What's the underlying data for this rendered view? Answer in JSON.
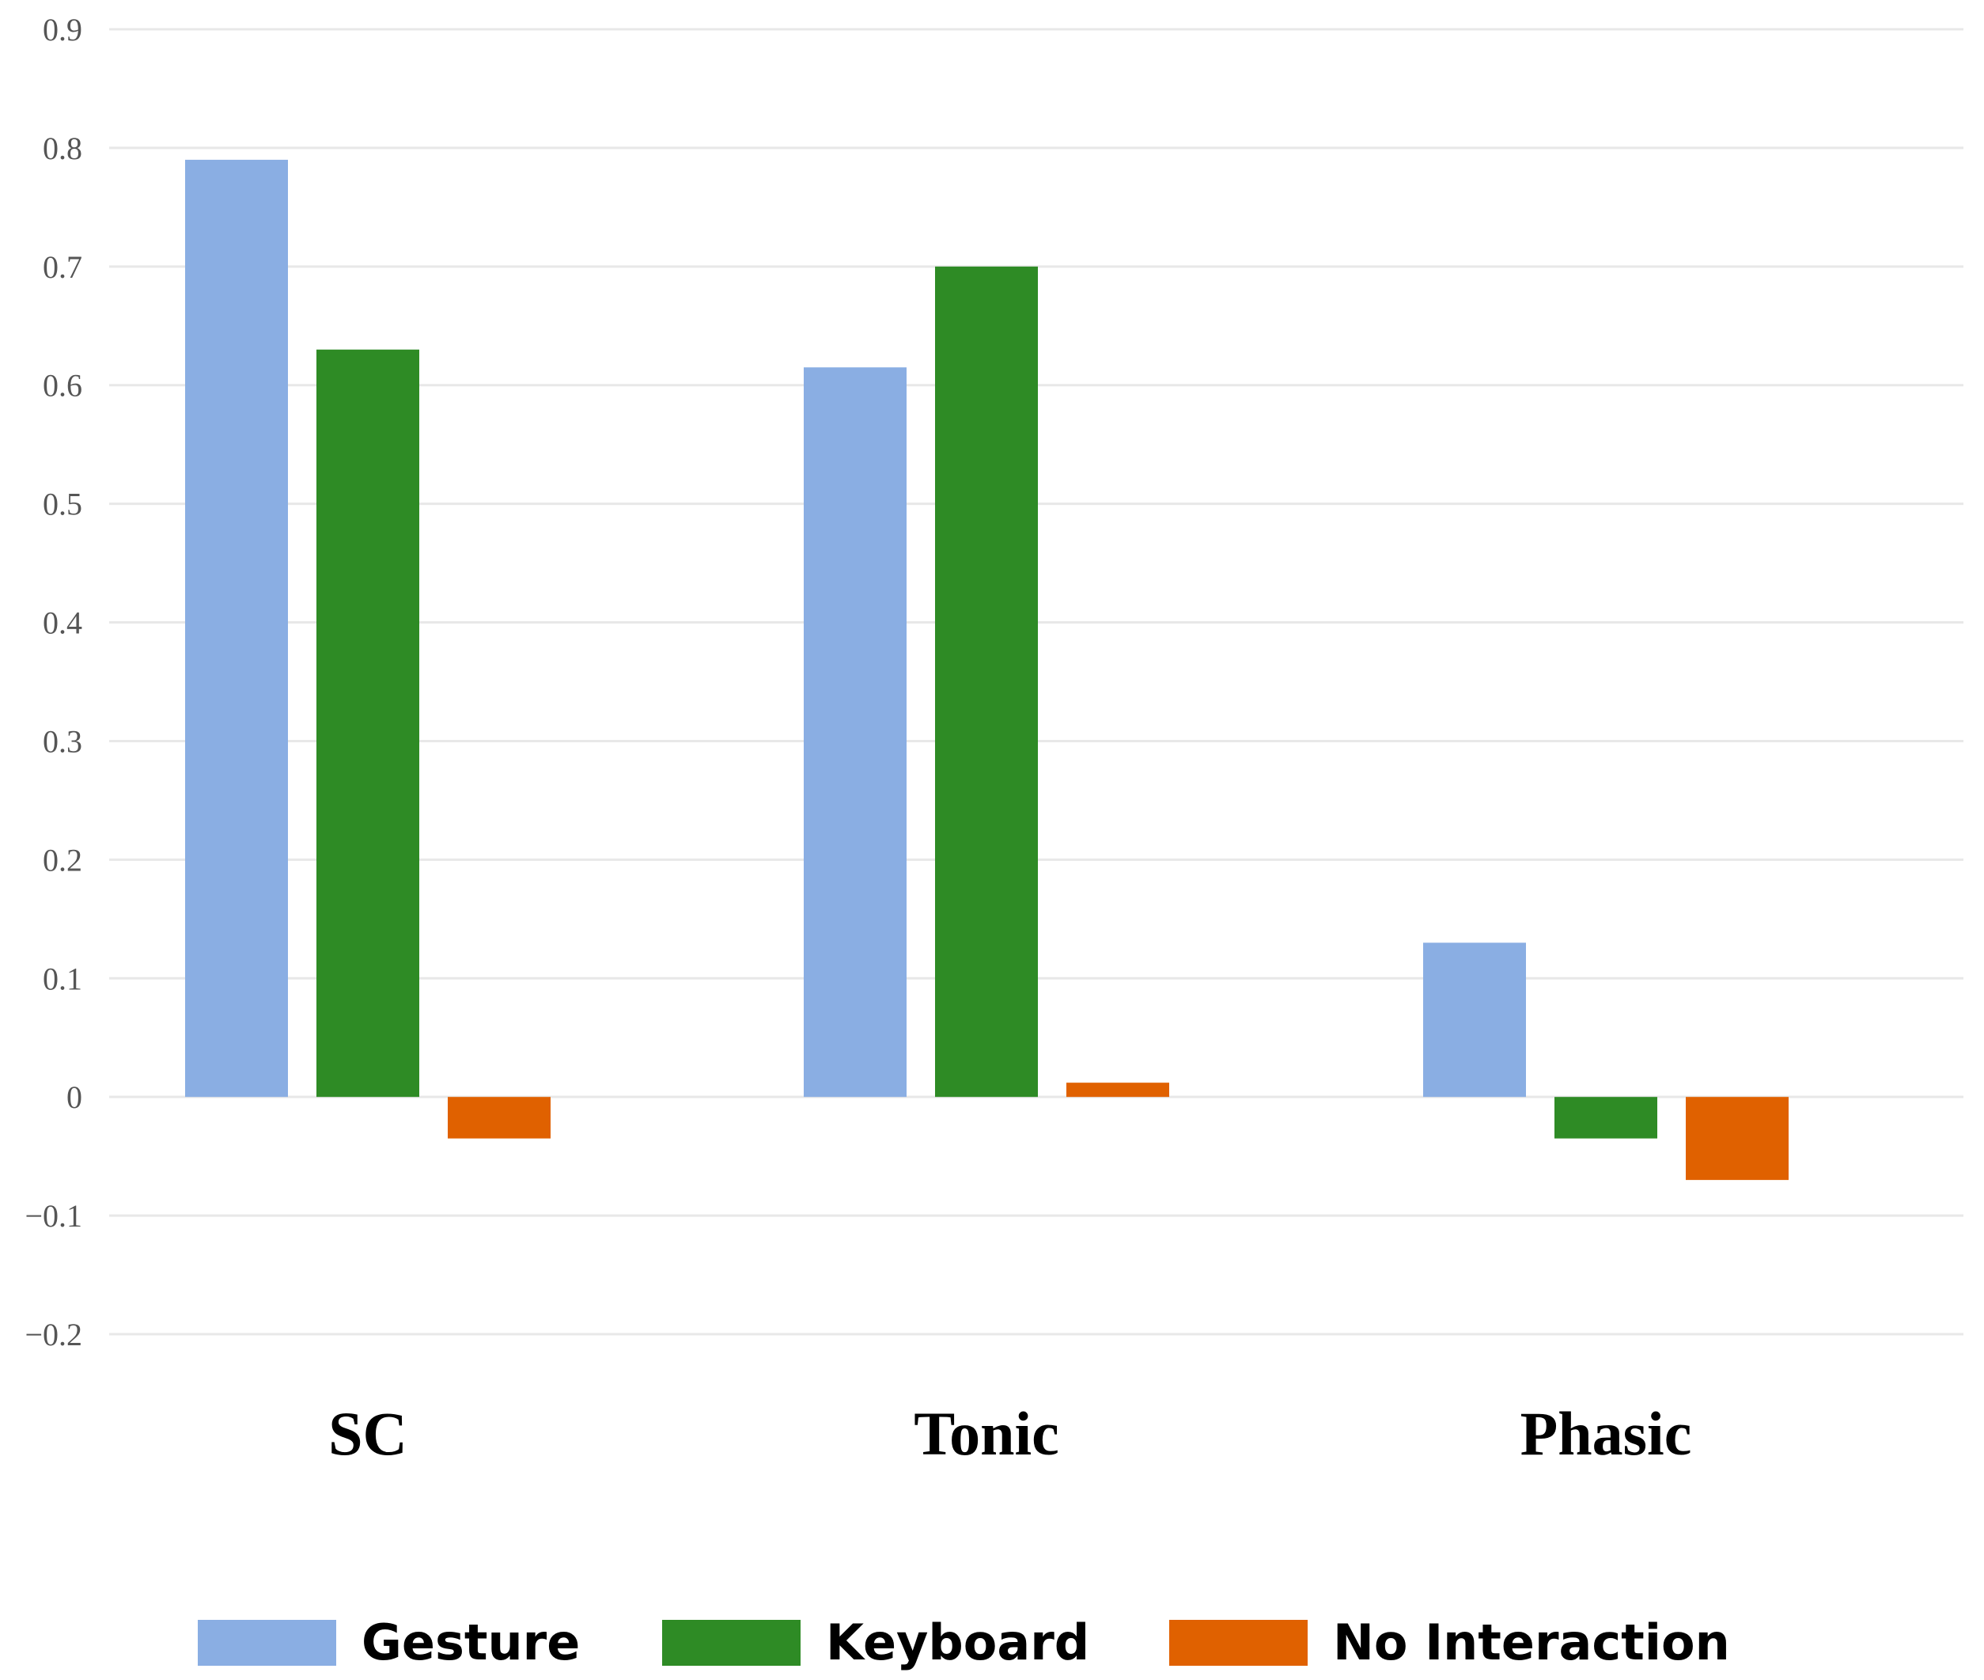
{
  "chart_data": {
    "type": "bar",
    "title": "",
    "xlabel": "",
    "ylabel": "",
    "categories": [
      "SC",
      "Tonic",
      "Phasic"
    ],
    "series": [
      {
        "name": "Gesture",
        "color": "#8AAEE3",
        "values": [
          0.79,
          0.615,
          0.13
        ]
      },
      {
        "name": "Keyboard",
        "color": "#2E8B25",
        "values": [
          0.63,
          0.7,
          -0.035
        ]
      },
      {
        "name": "No Interaction",
        "color": "#E06100",
        "values": [
          -0.035,
          0.012,
          -0.07
        ]
      }
    ],
    "ylim": [
      -0.2,
      0.9
    ],
    "yticks": [
      -0.2,
      -0.1,
      0,
      0.1,
      0.2,
      0.3,
      0.4,
      0.5,
      0.6,
      0.7,
      0.8,
      0.9
    ],
    "ytick_labels": [
      "−0.2",
      "−0.1",
      "0",
      "0.1",
      "0.2",
      "0.3",
      "0.4",
      "0.5",
      "0.6",
      "0.7",
      "0.8",
      "0.9"
    ],
    "grid": true,
    "legend_position": "bottom"
  }
}
